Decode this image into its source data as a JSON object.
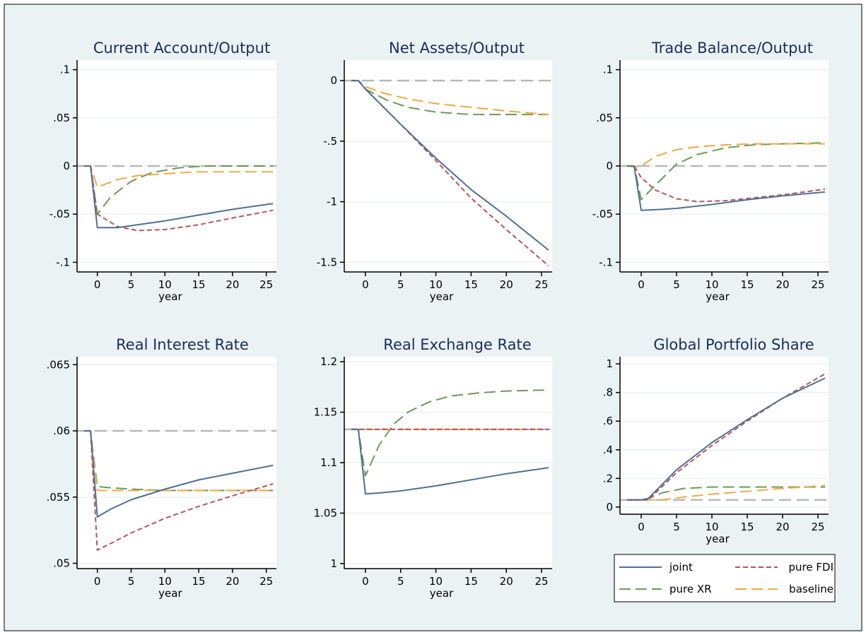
{
  "colors": {
    "outer_bg": "#eaf2f3",
    "plot_bg": "#ffffff",
    "gridline": "#eaf2f3",
    "reference_line": "#b8b8b8",
    "title": "#1b2d5a"
  },
  "legend": {
    "position": "bottom-right",
    "entries": [
      {
        "label": "joint",
        "color": "#4e6f95",
        "dash": "solid"
      },
      {
        "label": "pure FDI",
        "color": "#b5565c",
        "dash": "short"
      },
      {
        "label": "pure XR",
        "color": "#6b9a57",
        "dash": "long"
      },
      {
        "label": "baseline",
        "color": "#f0aa45",
        "dash": "long"
      }
    ]
  },
  "chart_data": [
    {
      "type": "line",
      "title": "Current Account/Output",
      "xlabel": "year",
      "ylabel": "",
      "xlim": [
        -3,
        26.5
      ],
      "ylim": [
        -0.11,
        0.11
      ],
      "xticks": [
        0,
        5,
        10,
        15,
        20,
        25
      ],
      "xtick_labels": [
        "0",
        "5",
        "10",
        "15",
        "20",
        "25"
      ],
      "yticks": [
        -0.1,
        -0.05,
        0,
        0.05,
        0.1
      ],
      "ytick_labels": [
        "-.1",
        "-.05",
        "0",
        ".05",
        ".1"
      ],
      "reference_y": 0,
      "series": [
        {
          "name": "joint",
          "x": [
            -2,
            -1,
            0,
            3,
            5,
            10,
            15,
            20,
            26
          ],
          "y": [
            0,
            0,
            -0.064,
            -0.064,
            -0.062,
            -0.057,
            -0.051,
            -0.045,
            -0.039
          ]
        },
        {
          "name": "pure FDI",
          "x": [
            -2,
            -1,
            0,
            3,
            6,
            10,
            15,
            20,
            26
          ],
          "y": [
            0,
            0,
            -0.05,
            -0.063,
            -0.067,
            -0.066,
            -0.061,
            -0.054,
            -0.046
          ]
        },
        {
          "name": "pure XR",
          "x": [
            -2,
            -1,
            0,
            2,
            5,
            8,
            12,
            16,
            20,
            26
          ],
          "y": [
            0,
            0,
            -0.05,
            -0.032,
            -0.016,
            -0.007,
            -0.002,
            0,
            0,
            0
          ]
        },
        {
          "name": "baseline",
          "x": [
            -2,
            -1,
            0,
            3,
            6,
            10,
            15,
            20,
            26
          ],
          "y": [
            0,
            0,
            -0.022,
            -0.014,
            -0.01,
            -0.008,
            -0.006,
            -0.006,
            -0.006
          ]
        }
      ]
    },
    {
      "type": "line",
      "title": "Net Assets/Output",
      "xlabel": "year",
      "ylabel": "",
      "xlim": [
        -3,
        26.5
      ],
      "ylim": [
        -1.58,
        0.17
      ],
      "xticks": [
        0,
        5,
        10,
        15,
        20,
        25
      ],
      "xtick_labels": [
        "0",
        "5",
        "10",
        "15",
        "20",
        "25"
      ],
      "yticks": [
        -1.5,
        -1,
        -0.5,
        0
      ],
      "ytick_labels": [
        "-1.5",
        "-1",
        "-.5",
        "0"
      ],
      "reference_y": 0,
      "series": [
        {
          "name": "joint",
          "x": [
            -2,
            -1,
            0,
            5,
            10,
            15,
            20,
            26
          ],
          "y": [
            0,
            0,
            -0.07,
            -0.36,
            -0.64,
            -0.9,
            -1.12,
            -1.4
          ]
        },
        {
          "name": "pure FDI",
          "x": [
            -2,
            -1,
            0,
            5,
            10,
            15,
            20,
            26
          ],
          "y": [
            0,
            0,
            -0.07,
            -0.36,
            -0.66,
            -0.97,
            -1.23,
            -1.53
          ]
        },
        {
          "name": "pure XR",
          "x": [
            -2,
            -1,
            0,
            3,
            6,
            10,
            15,
            20,
            26
          ],
          "y": [
            0,
            0,
            -0.07,
            -0.16,
            -0.22,
            -0.26,
            -0.28,
            -0.28,
            -0.28
          ]
        },
        {
          "name": "baseline",
          "x": [
            -2,
            -1,
            0,
            3,
            6,
            10,
            15,
            20,
            26
          ],
          "y": [
            0,
            0,
            -0.05,
            -0.11,
            -0.15,
            -0.19,
            -0.22,
            -0.25,
            -0.28
          ]
        }
      ]
    },
    {
      "type": "line",
      "title": "Trade Balance/Output",
      "xlabel": "year",
      "ylabel": "",
      "xlim": [
        -3,
        26.5
      ],
      "ylim": [
        -0.11,
        0.11
      ],
      "xticks": [
        0,
        5,
        10,
        15,
        20,
        25
      ],
      "xtick_labels": [
        "0",
        "5",
        "10",
        "15",
        "20",
        "25"
      ],
      "yticks": [
        -0.1,
        -0.05,
        0,
        0.05,
        0.1
      ],
      "ytick_labels": [
        "-.1",
        "-.05",
        "0",
        ".05",
        ".1"
      ],
      "reference_y": 0,
      "series": [
        {
          "name": "joint",
          "x": [
            -2,
            -1,
            0,
            3,
            5,
            10,
            15,
            20,
            26
          ],
          "y": [
            0,
            0,
            -0.046,
            -0.045,
            -0.044,
            -0.04,
            -0.035,
            -0.031,
            -0.027
          ]
        },
        {
          "name": "pure FDI",
          "x": [
            -2,
            -1,
            0,
            2,
            5,
            8,
            12,
            16,
            20,
            26
          ],
          "y": [
            0,
            0,
            -0.012,
            -0.025,
            -0.034,
            -0.037,
            -0.036,
            -0.033,
            -0.03,
            -0.024
          ]
        },
        {
          "name": "pure XR",
          "x": [
            -2,
            -1,
            0,
            2,
            5,
            8,
            12,
            16,
            20,
            26
          ],
          "y": [
            0,
            0,
            -0.035,
            -0.02,
            0.002,
            0.012,
            0.019,
            0.022,
            0.023,
            0.024
          ]
        },
        {
          "name": "baseline",
          "x": [
            -2,
            -1,
            0,
            2,
            5,
            8,
            12,
            16,
            20,
            26
          ],
          "y": [
            0,
            -0.001,
            0,
            0.01,
            0.017,
            0.02,
            0.022,
            0.023,
            0.023,
            0.023
          ]
        }
      ]
    },
    {
      "type": "line",
      "title": "Real Interest Rate",
      "xlabel": "year",
      "ylabel": "",
      "xlim": [
        -3,
        26.5
      ],
      "ylim": [
        0.0496,
        0.0656
      ],
      "xticks": [
        0,
        5,
        10,
        15,
        20,
        25
      ],
      "xtick_labels": [
        "0",
        "5",
        "10",
        "15",
        "20",
        "25"
      ],
      "yticks": [
        0.05,
        0.055,
        0.06,
        0.065
      ],
      "ytick_labels": [
        ".05",
        ".055",
        ".06",
        ".065"
      ],
      "reference_y": 0.06,
      "series": [
        {
          "name": "joint",
          "x": [
            -2,
            -1,
            0,
            2,
            5,
            10,
            15,
            20,
            26
          ],
          "y": [
            0.06,
            0.06,
            0.0535,
            0.0541,
            0.0548,
            0.0556,
            0.0563,
            0.0568,
            0.0574
          ]
        },
        {
          "name": "pure FDI",
          "x": [
            -2,
            -1,
            0,
            2,
            5,
            10,
            15,
            20,
            26
          ],
          "y": [
            0.06,
            0.06,
            0.051,
            0.0515,
            0.0523,
            0.0534,
            0.0543,
            0.0551,
            0.056
          ]
        },
        {
          "name": "pure XR",
          "x": [
            -2,
            -1,
            0,
            2,
            5,
            10,
            15,
            20,
            26
          ],
          "y": [
            0.06,
            0.06,
            0.0558,
            0.0557,
            0.0556,
            0.0555,
            0.0555,
            0.0555,
            0.0555
          ]
        },
        {
          "name": "baseline",
          "x": [
            -2,
            -1,
            0,
            2,
            5,
            10,
            15,
            20,
            26
          ],
          "y": [
            0.06,
            0.06,
            0.0555,
            0.0555,
            0.0555,
            0.0555,
            0.0555,
            0.0555,
            0.0555
          ]
        }
      ]
    },
    {
      "type": "line",
      "title": "Real Exchange Rate",
      "xlabel": "year",
      "ylabel": "",
      "xlim": [
        -3,
        26.5
      ],
      "ylim": [
        0.995,
        1.205
      ],
      "xticks": [
        0,
        5,
        10,
        15,
        20,
        25
      ],
      "xtick_labels": [
        "0",
        "5",
        "10",
        "15",
        "20",
        "25"
      ],
      "yticks": [
        1,
        1.05,
        1.1,
        1.15,
        1.2
      ],
      "ytick_labels": [
        "1",
        "1.05",
        "1.1",
        "1.15",
        "1.2"
      ],
      "reference_y": 1.133,
      "series": [
        {
          "name": "joint",
          "x": [
            -2,
            -1,
            0,
            2,
            5,
            10,
            15,
            20,
            26
          ],
          "y": [
            1.133,
            1.133,
            1.069,
            1.07,
            1.072,
            1.077,
            1.083,
            1.089,
            1.095
          ]
        },
        {
          "name": "pure FDI",
          "x": [
            -2,
            -1,
            0,
            5,
            10,
            15,
            20,
            26
          ],
          "y": [
            1.133,
            1.133,
            1.133,
            1.133,
            1.133,
            1.133,
            1.133,
            1.133
          ]
        },
        {
          "name": "pure XR",
          "x": [
            -2,
            -1,
            0,
            2,
            4,
            6,
            9,
            12,
            16,
            20,
            26
          ],
          "y": [
            1.133,
            1.133,
            1.087,
            1.118,
            1.138,
            1.15,
            1.16,
            1.166,
            1.169,
            1.171,
            1.172
          ]
        },
        {
          "name": "baseline",
          "x": [
            -2,
            -1,
            0,
            5,
            10,
            15,
            20,
            26
          ],
          "y": [
            1.133,
            1.133,
            1.133,
            1.133,
            1.133,
            1.133,
            1.133,
            1.133
          ]
        }
      ]
    },
    {
      "type": "line",
      "title": "Global Portfolio Share",
      "xlabel": "year",
      "ylabel": "",
      "xlim": [
        -3,
        26.5
      ],
      "ylim": [
        -0.05,
        1.05
      ],
      "xticks": [
        0,
        5,
        10,
        15,
        20,
        25
      ],
      "xtick_labels": [
        "0",
        "5",
        "10",
        "15",
        "20",
        "25"
      ],
      "yticks": [
        0,
        0.2,
        0.4,
        0.6,
        0.8,
        1
      ],
      "ytick_labels": [
        "0",
        ".2",
        ".4",
        ".6",
        ".8",
        "1"
      ],
      "reference_y": 0.05,
      "series": [
        {
          "name": "joint",
          "x": [
            -2,
            -1,
            0,
            1,
            5,
            10,
            15,
            20,
            26
          ],
          "y": [
            0.05,
            0.05,
            0.05,
            0.06,
            0.26,
            0.45,
            0.61,
            0.76,
            0.9
          ]
        },
        {
          "name": "pure FDI",
          "x": [
            -2,
            -1,
            0,
            1,
            5,
            10,
            15,
            20,
            26
          ],
          "y": [
            0.05,
            0.05,
            0.05,
            0.05,
            0.24,
            0.43,
            0.6,
            0.76,
            0.93
          ]
        },
        {
          "name": "pure XR",
          "x": [
            -2,
            -1,
            0,
            1,
            3,
            6,
            10,
            15,
            20,
            26
          ],
          "y": [
            0.05,
            0.05,
            0.05,
            0.06,
            0.1,
            0.13,
            0.14,
            0.14,
            0.14,
            0.14
          ]
        },
        {
          "name": "baseline",
          "x": [
            -2,
            -1,
            0,
            1,
            3,
            6,
            10,
            15,
            20,
            26
          ],
          "y": [
            0.05,
            0.05,
            0.05,
            0.05,
            0.05,
            0.07,
            0.09,
            0.11,
            0.13,
            0.15
          ]
        }
      ]
    }
  ]
}
